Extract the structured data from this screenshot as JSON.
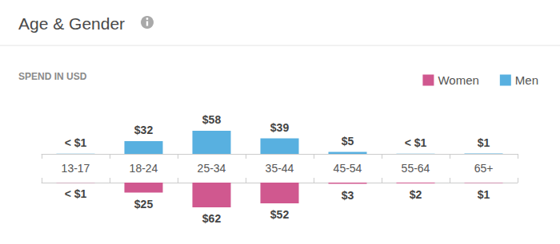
{
  "chart_data": {
    "type": "bar",
    "title": "Age & Gender",
    "subtitle": "SPEND IN USD",
    "categories": [
      "13-17",
      "18-24",
      "25-34",
      "35-44",
      "45-54",
      "55-64",
      "65+"
    ],
    "series": [
      {
        "name": "Women",
        "color": "#d0588f",
        "values": [
          0.3,
          25,
          62,
          52,
          3,
          2,
          1
        ],
        "value_labels": [
          "< $1",
          "$25",
          "$62",
          "$52",
          "$3",
          "$2",
          "$1"
        ]
      },
      {
        "name": "Men",
        "color": "#58b0e0",
        "values": [
          0.3,
          32,
          58,
          39,
          5,
          0.3,
          1
        ],
        "value_labels": [
          "< $1",
          "$32",
          "$58",
          "$39",
          "$5",
          "< $1",
          "$1"
        ]
      }
    ],
    "data_labels": true,
    "tick_labels": "x",
    "legend": "top-right",
    "grid": false
  }
}
